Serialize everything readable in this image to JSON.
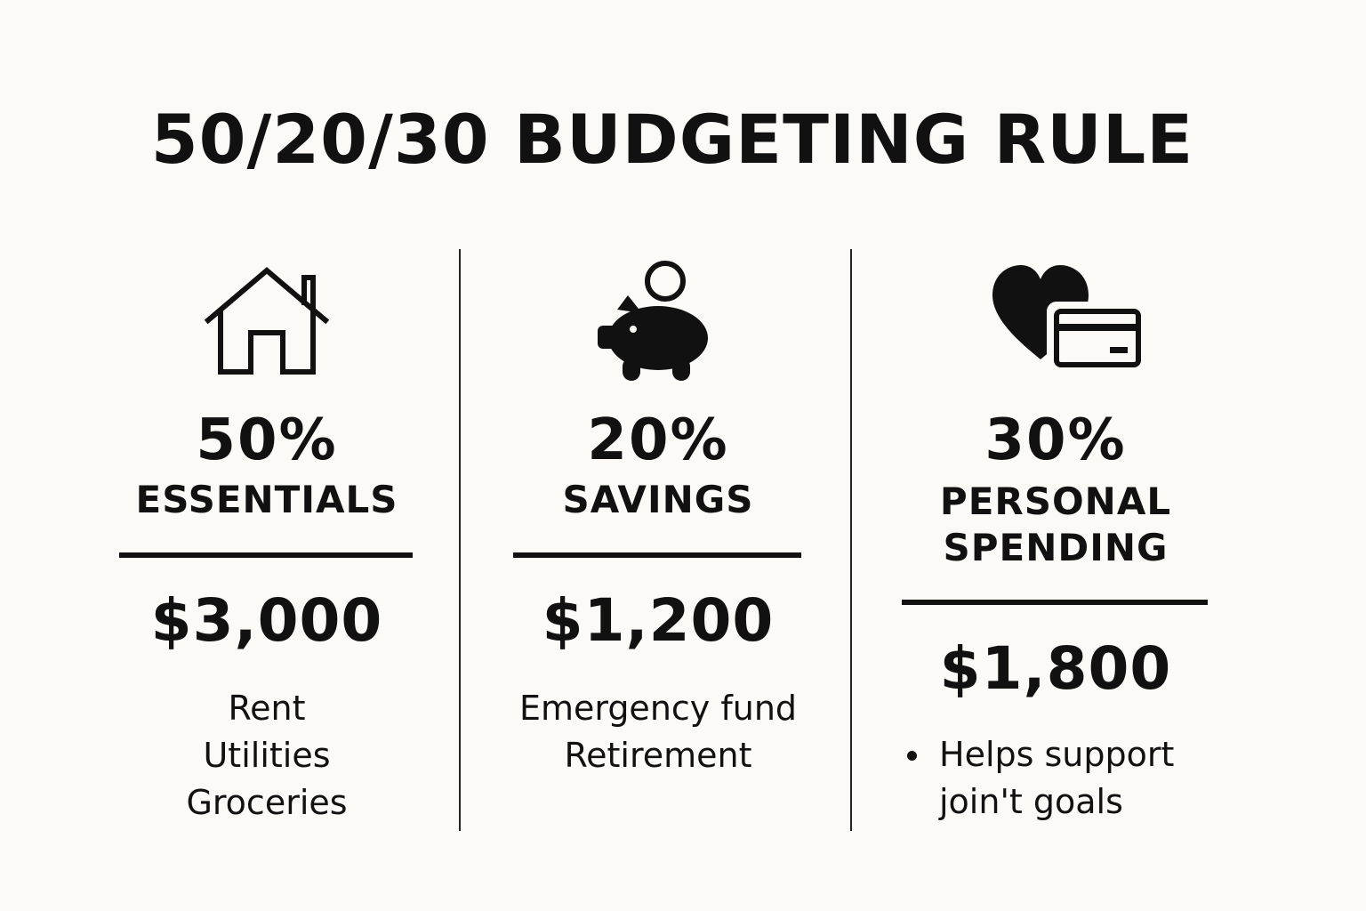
{
  "title": "50/20/30 BUDGETING RULE",
  "columns": [
    {
      "icon": "house-icon",
      "percent": "50%",
      "category": "ESSENTIALS",
      "amount": "$3,000",
      "items": [
        "Rent",
        "Utilities",
        "Groceries"
      ]
    },
    {
      "icon": "piggy-bank-icon",
      "percent": "20%",
      "category": "SAVINGS",
      "amount": "$1,200",
      "items": [
        "Emergency fund",
        "Retirement"
      ]
    },
    {
      "icon": "heart-credit-card-icon",
      "percent": "30%",
      "category_line1": "PERSONAL",
      "category_line2": "SPENDING",
      "amount": "$1,800",
      "bullet": {
        "line1": "Helps support",
        "line2": "join't goals"
      }
    }
  ],
  "colors": {
    "background": "#fbfaf6",
    "ink": "#111111"
  }
}
